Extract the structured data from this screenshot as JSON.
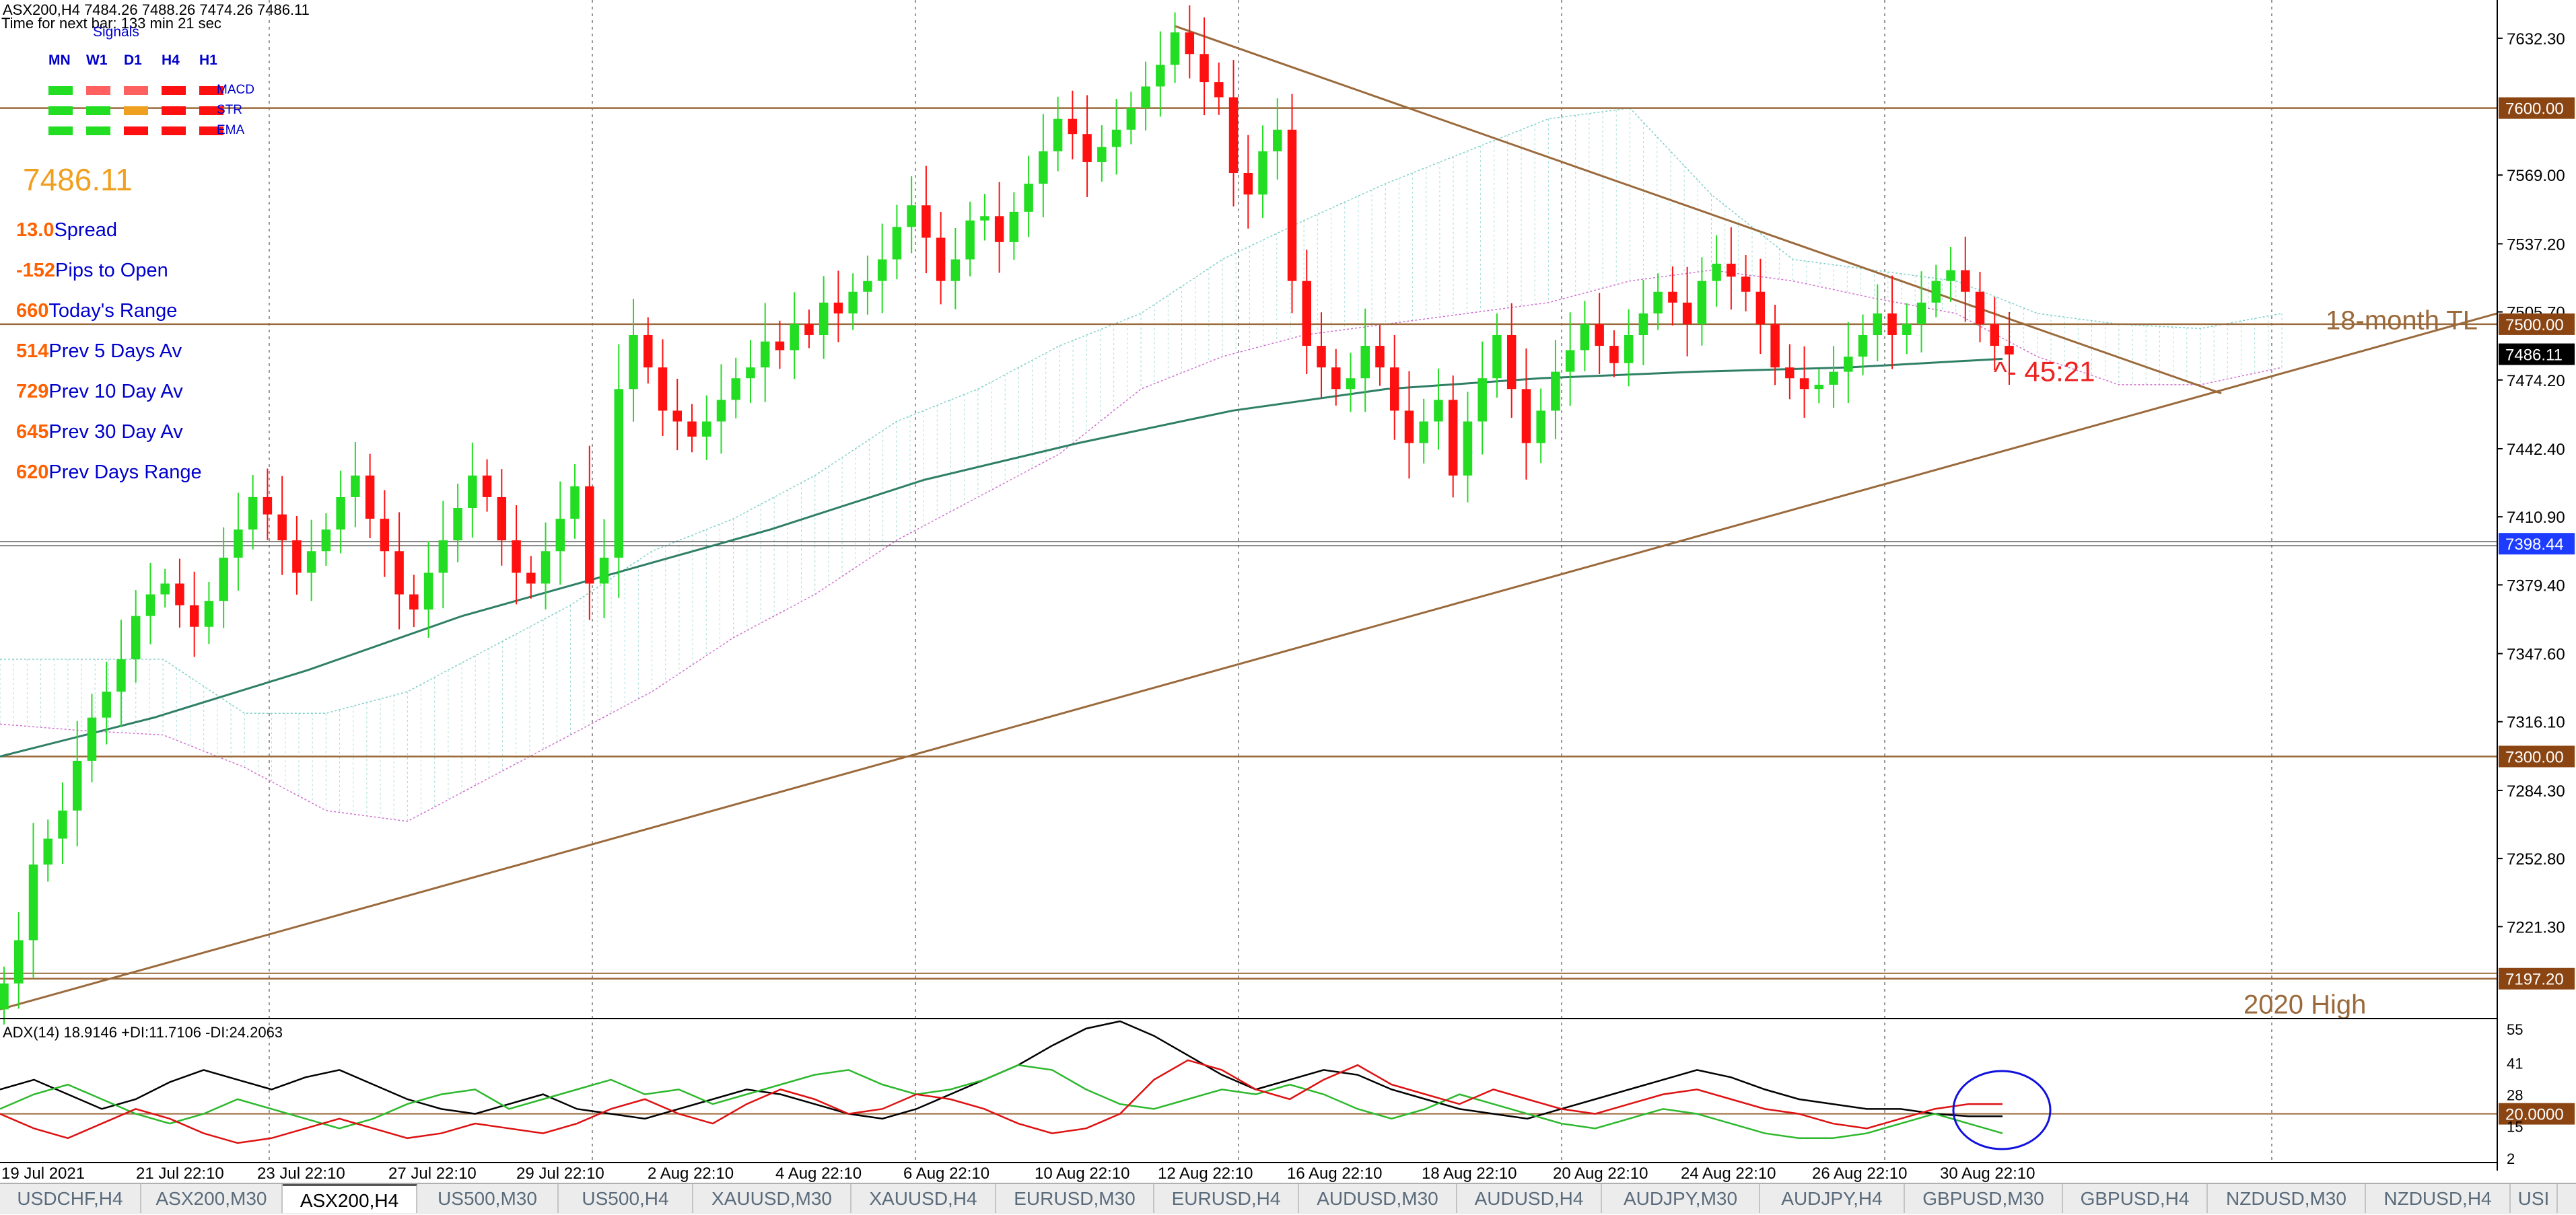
{
  "header": {
    "symbol_line": "ASX200,H4  7484.26 7488.26 7474.26 7486.11",
    "timer_line": "Time for next bar: 133 min 21 sec"
  },
  "signals": {
    "title": "Signals",
    "timeframes": [
      "MN",
      "W1",
      "D1",
      "H4",
      "H1"
    ],
    "rows": [
      {
        "label": "MACD",
        "colors": [
          "#22dd22",
          "#ff6060",
          "#ff6060",
          "#ff1010",
          "#ff1010"
        ]
      },
      {
        "label": "STR",
        "colors": [
          "#22dd22",
          "#22dd22",
          "#f0a020",
          "#ff1010",
          "#ff1010"
        ]
      },
      {
        "label": "EMA",
        "colors": [
          "#22dd22",
          "#22dd22",
          "#ff1010",
          "#ff1010",
          "#ff1010"
        ]
      }
    ]
  },
  "hud": {
    "price": "7486.11",
    "stats": [
      {
        "value": "13.0",
        "label": "Spread"
      },
      {
        "value": "-152",
        "label": "Pips to Open"
      },
      {
        "value": "660",
        "label": "Today's Range"
      },
      {
        "value": "514",
        "label": "Prev 5 Days Av"
      },
      {
        "value": "729",
        "label": "Prev 10 Day Av"
      },
      {
        "value": "645",
        "label": "Prev 30 Day Av"
      },
      {
        "value": "620",
        "label": "Prev Days Range"
      }
    ]
  },
  "colors": {
    "bull": "#22dd22",
    "bear": "#ff1010",
    "level_line": "#9b6a3c",
    "trendline": "#9b6a3c",
    "ma": "#2f7f66",
    "cloud_up": "#7fd0c8",
    "cloud_down": "#d070d0",
    "badge_brown": "#8b4513",
    "badge_blue": "#1e3cff",
    "adx_line": "#000000",
    "plus_di": "#2db82d",
    "minus_di": "#dd1111",
    "annotation": "#ee2222",
    "circle": "#1010dd"
  },
  "chart_data": [
    {
      "type": "candlestick",
      "symbol": "ASX200",
      "timeframe": "H4",
      "ylim": [
        7180,
        7650
      ],
      "y_ticks": [
        7632.3,
        7569.0,
        7537.2,
        7505.7,
        7474.2,
        7442.4,
        7410.9,
        7379.4,
        7347.6,
        7316.1,
        7284.3,
        7252.8,
        7221.3
      ],
      "y_tick_labels": [
        "7632.30",
        "7569.00",
        "7537.20",
        "7505.70",
        "7474.20",
        "7442.40",
        "7410.90",
        "7379.40",
        "7347.60",
        "7316.10",
        "7284.30",
        "7252.80",
        "7221.30"
      ],
      "x_labels": [
        "19 Jul 2021",
        "21 Jul 22:10",
        "23 Jul 22:10",
        "27 Jul 22:10",
        "29 Jul 22:10",
        "2 Aug 22:10",
        "4 Aug 22:10",
        "6 Aug 22:10",
        "10 Aug 22:10",
        "12 Aug 22:10",
        "16 Aug 22:10",
        "18 Aug 22:10",
        "20 Aug 22:10",
        "24 Aug 22:10",
        "26 Aug 22:10",
        "30 Aug 22:10"
      ],
      "horizontal_levels": [
        {
          "price": 7600.0,
          "label": "7600.00",
          "badge": "brown"
        },
        {
          "price": 7500.0,
          "label": "7500.00",
          "badge": "brown"
        },
        {
          "price": 7486.11,
          "label": "7486.11",
          "badge": "black"
        },
        {
          "price": 7398.44,
          "label": "7398.44",
          "badge": "blue"
        },
        {
          "price": 7300.0,
          "label": "7300.00",
          "badge": "brown"
        },
        {
          "price": 7197.2,
          "label": "7197.20",
          "badge": "brown"
        }
      ],
      "annotations": [
        {
          "text": "18-month TL"
        },
        {
          "text": "2020 High"
        },
        {
          "text": "^- 45:21"
        }
      ],
      "closes": [
        7195,
        7215,
        7250,
        7262,
        7275,
        7298,
        7318,
        7330,
        7345,
        7365,
        7375,
        7380,
        7370,
        7360,
        7372,
        7392,
        7405,
        7420,
        7412,
        7400,
        7385,
        7395,
        7405,
        7420,
        7430,
        7410,
        7395,
        7375,
        7368,
        7385,
        7400,
        7415,
        7430,
        7420,
        7400,
        7385,
        7380,
        7395,
        7410,
        7425,
        7380,
        7392,
        7470,
        7495,
        7480,
        7460,
        7455,
        7448,
        7455,
        7465,
        7475,
        7480,
        7492,
        7488,
        7500,
        7495,
        7510,
        7505,
        7515,
        7520,
        7530,
        7545,
        7555,
        7540,
        7520,
        7530,
        7548,
        7550,
        7538,
        7552,
        7565,
        7580,
        7595,
        7588,
        7575,
        7582,
        7590,
        7600,
        7610,
        7620,
        7635,
        7625,
        7612,
        7605,
        7570,
        7560,
        7580,
        7590,
        7520,
        7490,
        7480,
        7470,
        7475,
        7490,
        7480,
        7460,
        7445,
        7455,
        7465,
        7430,
        7455,
        7475,
        7495,
        7470,
        7445,
        7460,
        7478,
        7488,
        7500,
        7490,
        7482,
        7495,
        7505,
        7515,
        7510,
        7500,
        7520,
        7528,
        7522,
        7515,
        7500,
        7480,
        7475,
        7470,
        7472,
        7478,
        7485,
        7495,
        7505,
        7495,
        7500,
        7510,
        7520,
        7525,
        7515,
        7500,
        7490,
        7486
      ],
      "ma_line": [
        7300,
        7318,
        7340,
        7365,
        7385,
        7405,
        7428,
        7445,
        7460,
        7470,
        7475,
        7478,
        7480,
        7484
      ],
      "cloud_upper": [
        7345,
        7345,
        7345,
        7320,
        7320,
        7330,
        7350,
        7370,
        7395,
        7410,
        7430,
        7455,
        7470,
        7490,
        7505,
        7530,
        7548,
        7565,
        7580,
        7595,
        7600,
        7560,
        7530,
        7525,
        7520,
        7505,
        7500,
        7498,
        7505
      ],
      "cloud_lower": [
        7315,
        7312,
        7310,
        7295,
        7275,
        7270,
        7290,
        7310,
        7330,
        7355,
        7375,
        7400,
        7420,
        7440,
        7470,
        7485,
        7495,
        7500,
        7505,
        7510,
        7520,
        7525,
        7520,
        7512,
        7505,
        7485,
        7472,
        7472,
        7480
      ]
    },
    {
      "type": "line",
      "title": "ADX(14) 18.9146 +DI:11.7106 -DI:24.2063",
      "ylim": [
        0,
        58
      ],
      "y_tick_labels": [
        "55",
        "41",
        "28",
        "15",
        "2"
      ],
      "y_ticks": [
        55,
        41,
        28,
        15,
        2
      ],
      "level": {
        "value": 20.0,
        "label": "20.0000"
      },
      "series": [
        {
          "name": "ADX",
          "values": [
            30,
            34,
            28,
            22,
            26,
            33,
            38,
            34,
            30,
            35,
            38,
            32,
            26,
            22,
            20,
            24,
            28,
            22,
            20,
            18,
            22,
            26,
            30,
            28,
            24,
            20,
            18,
            22,
            28,
            34,
            40,
            48,
            55,
            58,
            52,
            44,
            36,
            30,
            34,
            38,
            36,
            30,
            26,
            22,
            20,
            18,
            22,
            26,
            30,
            34,
            38,
            35,
            30,
            26,
            24,
            22,
            22,
            20,
            19,
            19
          ]
        },
        {
          "name": "+DI",
          "values": [
            22,
            28,
            32,
            26,
            20,
            16,
            20,
            26,
            22,
            18,
            14,
            18,
            24,
            28,
            30,
            22,
            26,
            30,
            34,
            28,
            30,
            24,
            28,
            32,
            36,
            38,
            32,
            28,
            30,
            34,
            40,
            38,
            30,
            24,
            22,
            26,
            30,
            28,
            32,
            28,
            22,
            18,
            22,
            28,
            24,
            20,
            16,
            14,
            18,
            22,
            20,
            16,
            12,
            10,
            10,
            12,
            16,
            20,
            16,
            12
          ]
        },
        {
          "name": "-DI",
          "values": [
            20,
            14,
            10,
            16,
            22,
            18,
            12,
            8,
            10,
            14,
            18,
            14,
            10,
            12,
            16,
            14,
            12,
            16,
            22,
            26,
            20,
            16,
            24,
            30,
            26,
            20,
            22,
            28,
            26,
            22,
            16,
            12,
            14,
            20,
            34,
            42,
            38,
            30,
            26,
            34,
            40,
            32,
            28,
            24,
            30,
            26,
            22,
            20,
            24,
            28,
            30,
            26,
            22,
            20,
            16,
            14,
            18,
            22,
            24,
            24
          ]
        }
      ]
    }
  ],
  "tabs": {
    "items": [
      "USDCHF,H4",
      "ASX200,M30",
      "ASX200,H4",
      "US500,M30",
      "US500,H4",
      "XAUUSD,M30",
      "XAUUSD,H4",
      "EURUSD,M30",
      "EURUSD,H4",
      "AUDUSD,M30",
      "AUDUSD,H4",
      "AUDJPY,M30",
      "AUDJPY,H4",
      "GBPUSD,M30",
      "GBPUSD,H4",
      "NZDUSD,M30",
      "NZDUSD,H4",
      "USI"
    ],
    "active_index": 2
  }
}
